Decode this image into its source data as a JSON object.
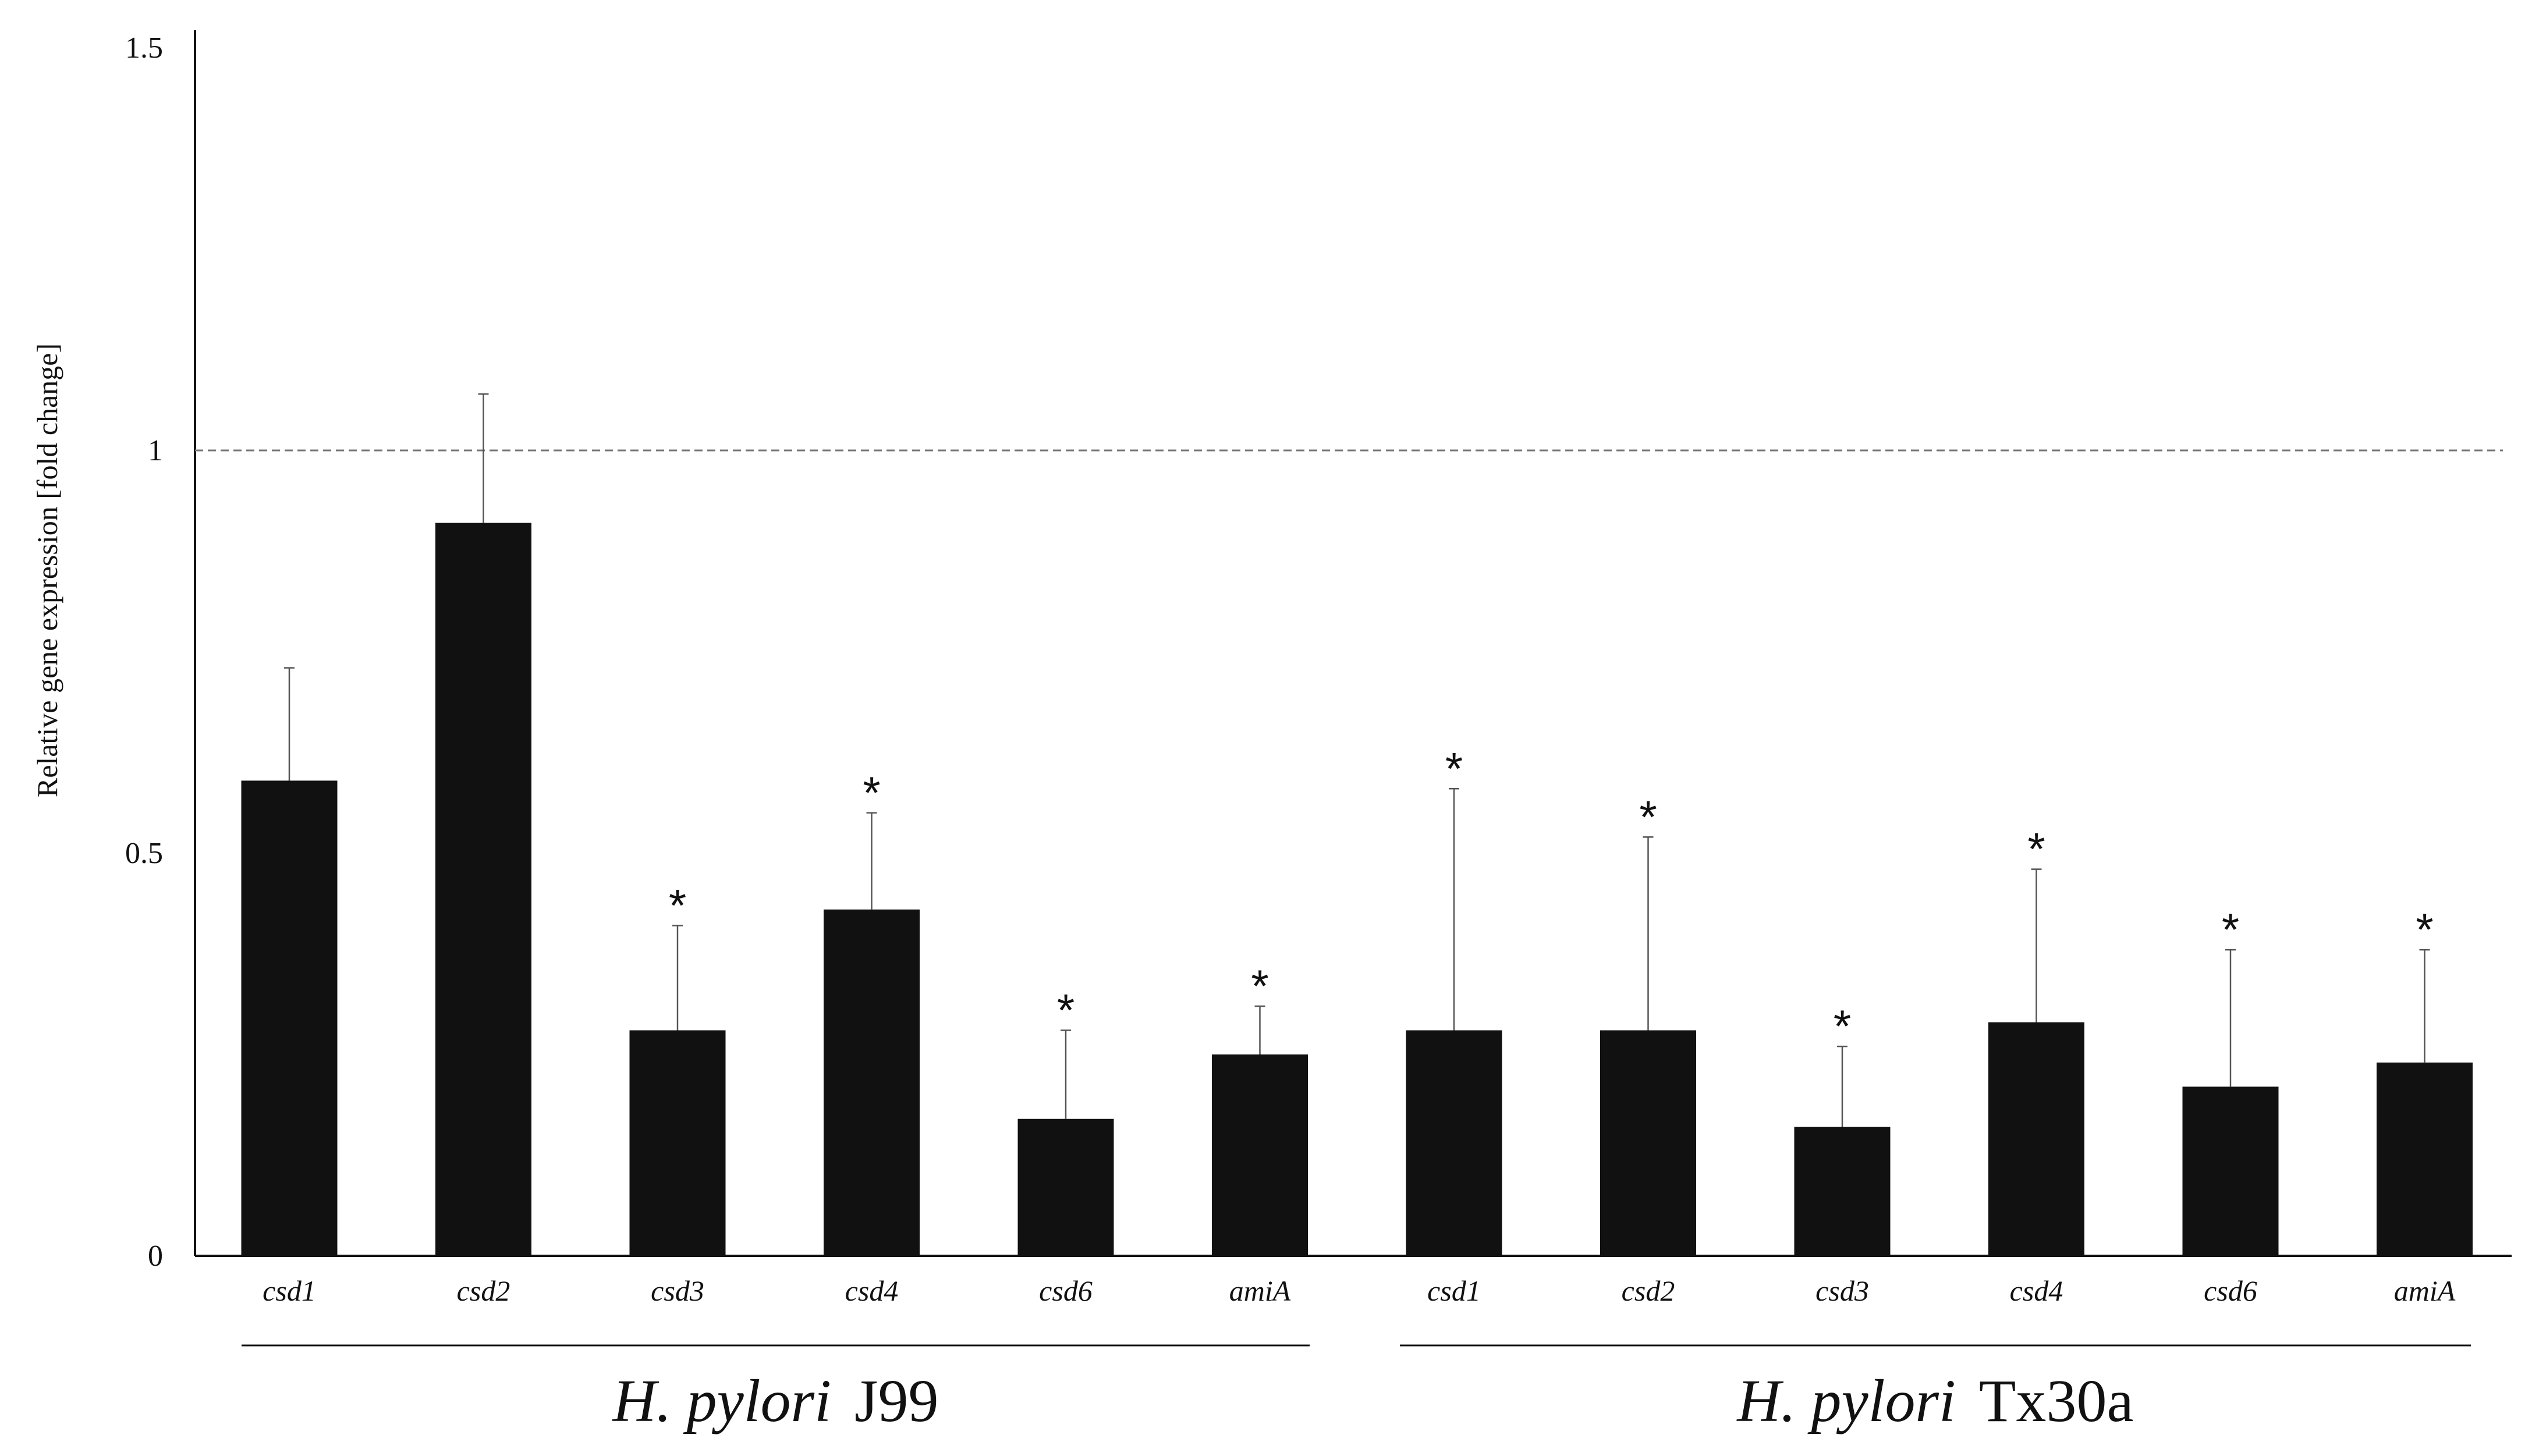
{
  "chart_data": {
    "type": "bar",
    "ylabel": "Relative gene expression [fold change]",
    "xlabel": "",
    "ylim": [
      0,
      1.5
    ],
    "yticks": [
      "0",
      "0.5",
      "1",
      "1.5"
    ],
    "reference_line": 1,
    "grid": false,
    "categories": [
      "csd1",
      "csd2",
      "csd3",
      "csd4",
      "csd6",
      "amiA",
      "csd1",
      "csd2",
      "csd3",
      "csd4",
      "csd6",
      "amiA"
    ],
    "values": [
      0.59,
      0.91,
      0.28,
      0.43,
      0.17,
      0.25,
      0.28,
      0.28,
      0.16,
      0.29,
      0.21,
      0.24
    ],
    "error_upper": [
      0.73,
      1.07,
      0.41,
      0.55,
      0.28,
      0.31,
      0.58,
      0.52,
      0.26,
      0.48,
      0.38,
      0.38
    ],
    "significant": [
      false,
      false,
      true,
      true,
      true,
      true,
      true,
      true,
      true,
      true,
      true,
      true
    ],
    "significance_marker": "*",
    "groups": [
      {
        "label_italic": "H. pylori",
        "label_rest": "J99",
        "categories": [
          "csd1",
          "csd2",
          "csd3",
          "csd4",
          "csd6",
          "amiA"
        ]
      },
      {
        "label_italic": "H. pylori",
        "label_rest": "Tx30a",
        "categories": [
          "csd1",
          "csd2",
          "csd3",
          "csd4",
          "csd6",
          "amiA"
        ]
      }
    ],
    "colors": {
      "bar": "#111111",
      "axis": "#111111",
      "reference_line": "#777777"
    }
  }
}
